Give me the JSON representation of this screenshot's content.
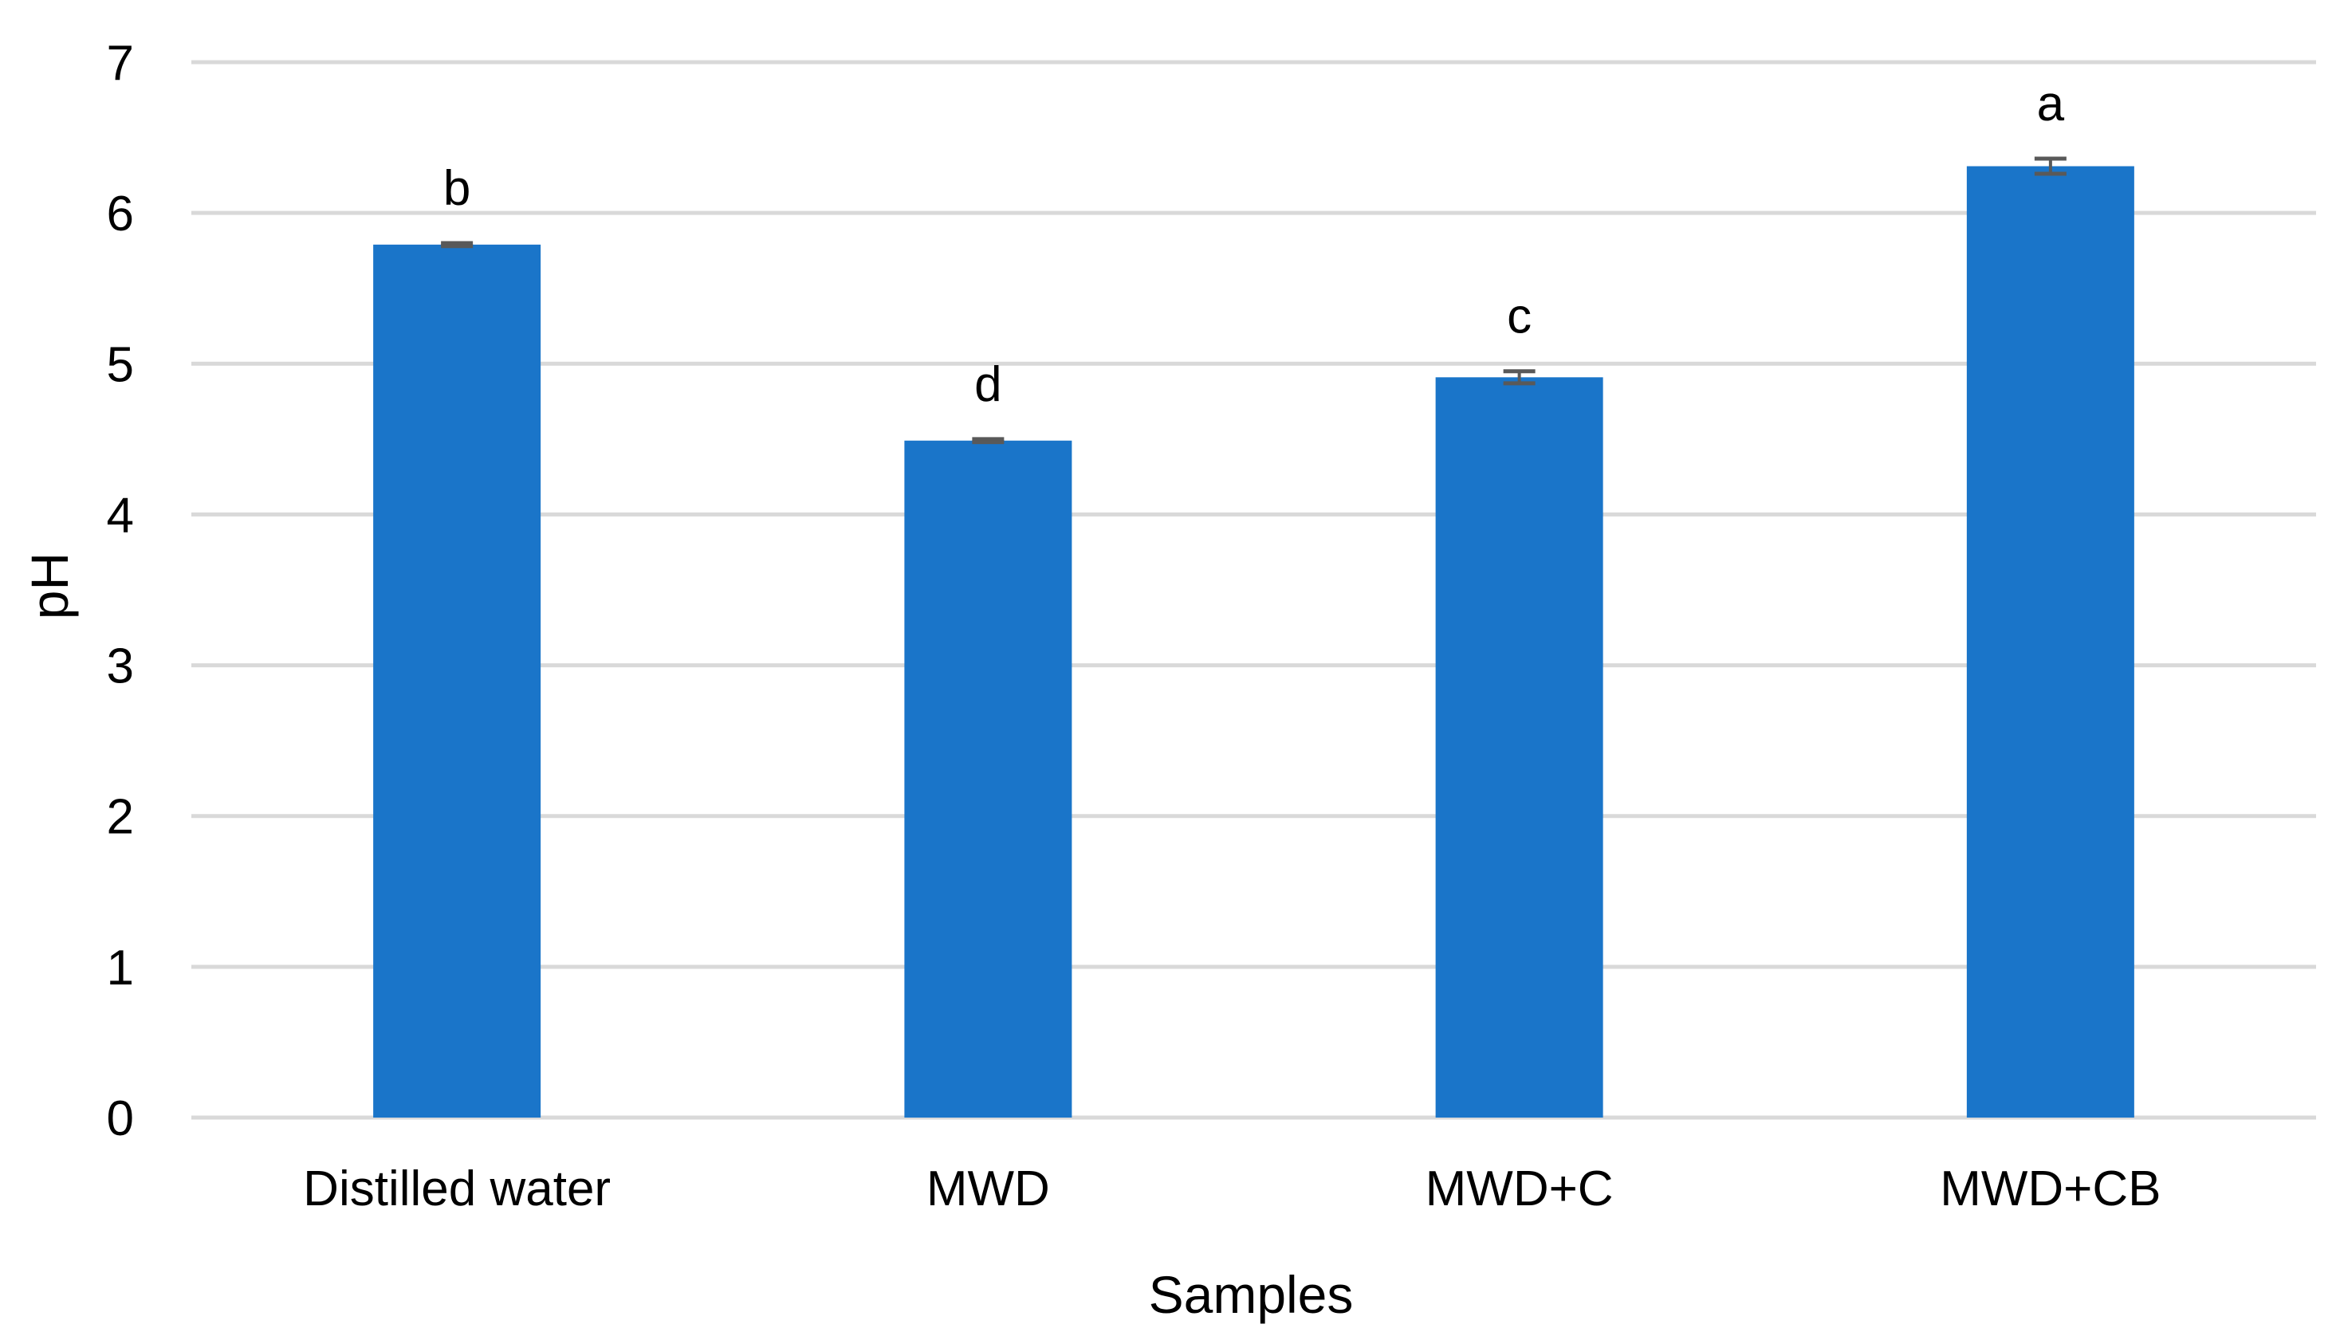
{
  "chart_data": {
    "type": "bar",
    "title": "",
    "xlabel": "Samples",
    "ylabel": "pH",
    "ylim": [
      0,
      7
    ],
    "yticks": [
      0,
      1,
      2,
      3,
      4,
      5,
      6,
      7
    ],
    "grid": true,
    "legend": "none",
    "categories": [
      "Distilled water",
      "MWD",
      "MWD+C",
      "MWD+CB"
    ],
    "values": [
      5.79,
      4.49,
      4.91,
      6.31
    ],
    "errors": [
      0.01,
      0.01,
      0.04,
      0.05
    ],
    "annotations": [
      "b",
      "d",
      "c",
      "a"
    ],
    "colors": {
      "bar": "#1a75c9",
      "error": "#595959",
      "grid": "#d9d9d9"
    }
  }
}
